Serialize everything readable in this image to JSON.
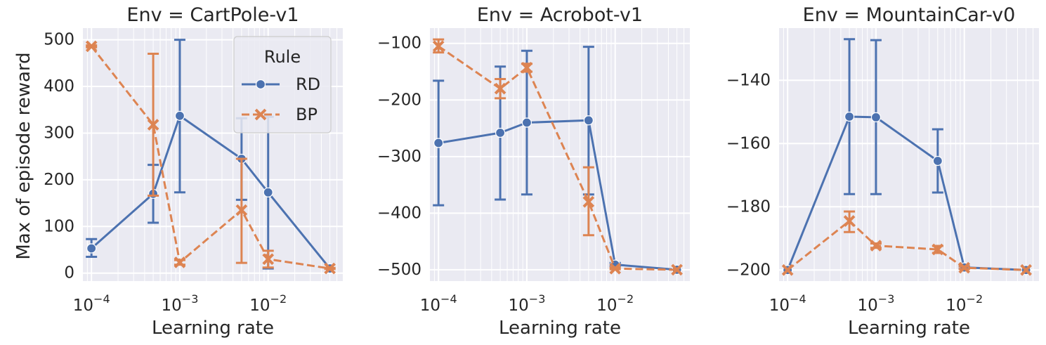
{
  "colors": {
    "RD": "#4c72b0",
    "BP": "#dd8452",
    "panel_bg": "#eaeaf2",
    "grid": "#ffffff",
    "text": "#262626"
  },
  "figure": {
    "ylabel": "Max of episode reward"
  },
  "legend": {
    "title": "Rule",
    "items": [
      {
        "label": "RD",
        "marker": "circle"
      },
      {
        "label": "BP",
        "marker": "x"
      }
    ]
  },
  "chart_data": [
    {
      "type": "line",
      "title": "Env = CartPole-v1",
      "xlabel": "Learning rate",
      "xscale": "log",
      "x_ticks": [
        {
          "value": 0.0001,
          "base": "10",
          "exp": "−4"
        },
        {
          "value": 0.001,
          "base": "10",
          "exp": "−3"
        },
        {
          "value": 0.01,
          "base": "10",
          "exp": "−2"
        }
      ],
      "xlim": [
        8e-05,
        0.07
      ],
      "ylim": [
        -17,
        525
      ],
      "y_ticks": [
        {
          "value": 0,
          "label": "0"
        },
        {
          "value": 100,
          "label": "100"
        },
        {
          "value": 200,
          "label": "200"
        },
        {
          "value": 300,
          "label": "300"
        },
        {
          "value": 400,
          "label": "400"
        },
        {
          "value": 500,
          "label": "500"
        }
      ],
      "grid": true,
      "legend_position": "top-right",
      "series": [
        {
          "name": "RD",
          "points": [
            {
              "x": 0.0001,
              "y": 53,
              "lo": 35,
              "hi": 73
            },
            {
              "x": 0.0005,
              "y": 170,
              "lo": 108,
              "hi": 232
            },
            {
              "x": 0.001,
              "y": 337,
              "lo": 173,
              "hi": 500
            },
            {
              "x": 0.005,
              "y": 245,
              "lo": 157,
              "hi": 332
            },
            {
              "x": 0.01,
              "y": 173,
              "lo": 10,
              "hi": 335
            },
            {
              "x": 0.05,
              "y": 10,
              "lo": 10,
              "hi": 10
            }
          ]
        },
        {
          "name": "BP",
          "points": [
            {
              "x": 0.0001,
              "y": 486,
              "lo": 484,
              "hi": 488
            },
            {
              "x": 0.0005,
              "y": 318,
              "lo": 166,
              "hi": 470
            },
            {
              "x": 0.001,
              "y": 23,
              "lo": 18,
              "hi": 28
            },
            {
              "x": 0.005,
              "y": 135,
              "lo": 22,
              "hi": 245
            },
            {
              "x": 0.01,
              "y": 30,
              "lo": 12,
              "hi": 48
            },
            {
              "x": 0.05,
              "y": 10,
              "lo": 9,
              "hi": 11
            }
          ]
        }
      ]
    },
    {
      "type": "line",
      "title": "Env = Acrobot-v1",
      "xlabel": "Learning rate",
      "xscale": "log",
      "x_ticks": [
        {
          "value": 0.0001,
          "base": "10",
          "exp": "−4"
        },
        {
          "value": 0.001,
          "base": "10",
          "exp": "−3"
        },
        {
          "value": 0.01,
          "base": "10",
          "exp": "−2"
        }
      ],
      "xlim": [
        8e-05,
        0.07
      ],
      "ylim": [
        -520,
        -73
      ],
      "y_ticks": [
        {
          "value": -100,
          "label": "−100"
        },
        {
          "value": -200,
          "label": "−200"
        },
        {
          "value": -300,
          "label": "−300"
        },
        {
          "value": -400,
          "label": "−400"
        },
        {
          "value": -500,
          "label": "−500"
        }
      ],
      "grid": true,
      "series": [
        {
          "name": "RD",
          "points": [
            {
              "x": 0.0001,
              "y": -276,
              "lo": -386,
              "hi": -166
            },
            {
              "x": 0.0005,
              "y": -258,
              "lo": -376,
              "hi": -141
            },
            {
              "x": 0.001,
              "y": -240,
              "lo": -367,
              "hi": -113
            },
            {
              "x": 0.005,
              "y": -236,
              "lo": -367,
              "hi": -106
            },
            {
              "x": 0.01,
              "y": -491,
              "lo": -494,
              "hi": -488
            },
            {
              "x": 0.05,
              "y": -500,
              "lo": -500,
              "hi": -500
            }
          ]
        },
        {
          "name": "BP",
          "points": [
            {
              "x": 0.0001,
              "y": -105,
              "lo": -116,
              "hi": -93
            },
            {
              "x": 0.0005,
              "y": -180,
              "lo": -197,
              "hi": -163
            },
            {
              "x": 0.001,
              "y": -143,
              "lo": -150,
              "hi": -136
            },
            {
              "x": 0.005,
              "y": -380,
              "lo": -439,
              "hi": -319
            },
            {
              "x": 0.01,
              "y": -498,
              "lo": -499,
              "hi": -496
            },
            {
              "x": 0.05,
              "y": -500,
              "lo": -500,
              "hi": -500
            }
          ]
        }
      ]
    },
    {
      "type": "line",
      "title": "Env = MountainCar-v0",
      "xlabel": "Learning rate",
      "xscale": "log",
      "x_ticks": [
        {
          "value": 0.0001,
          "base": "10",
          "exp": "−4"
        },
        {
          "value": 0.001,
          "base": "10",
          "exp": "−3"
        },
        {
          "value": 0.01,
          "base": "10",
          "exp": "−2"
        }
      ],
      "xlim": [
        8e-05,
        0.07
      ],
      "ylim": [
        -203.5,
        -123.5
      ],
      "y_ticks": [
        {
          "value": -140,
          "label": "−140"
        },
        {
          "value": -160,
          "label": "−160"
        },
        {
          "value": -180,
          "label": "−180"
        },
        {
          "value": -200,
          "label": "−200"
        }
      ],
      "grid": true,
      "series": [
        {
          "name": "RD",
          "points": [
            {
              "x": 0.0001,
              "y": -200,
              "lo": -200,
              "hi": -200
            },
            {
              "x": 0.0005,
              "y": -151.5,
              "lo": -176,
              "hi": -127
            },
            {
              "x": 0.001,
              "y": -151.7,
              "lo": -176,
              "hi": -127.3
            },
            {
              "x": 0.005,
              "y": -165.5,
              "lo": -175.5,
              "hi": -155.5
            },
            {
              "x": 0.01,
              "y": -199.2,
              "lo": -199.6,
              "hi": -198.8
            },
            {
              "x": 0.05,
              "y": -200,
              "lo": -200,
              "hi": -200
            }
          ]
        },
        {
          "name": "BP",
          "points": [
            {
              "x": 0.0001,
              "y": -200,
              "lo": -200,
              "hi": -200
            },
            {
              "x": 0.0005,
              "y": -184.5,
              "lo": -188,
              "hi": -181.5
            },
            {
              "x": 0.001,
              "y": -192.3,
              "lo": -193,
              "hi": -191.6
            },
            {
              "x": 0.005,
              "y": -193.5,
              "lo": -194.6,
              "hi": -192.4
            },
            {
              "x": 0.01,
              "y": -199.3,
              "lo": -199.7,
              "hi": -198.9
            },
            {
              "x": 0.05,
              "y": -200,
              "lo": -200,
              "hi": -200
            }
          ]
        }
      ]
    }
  ]
}
